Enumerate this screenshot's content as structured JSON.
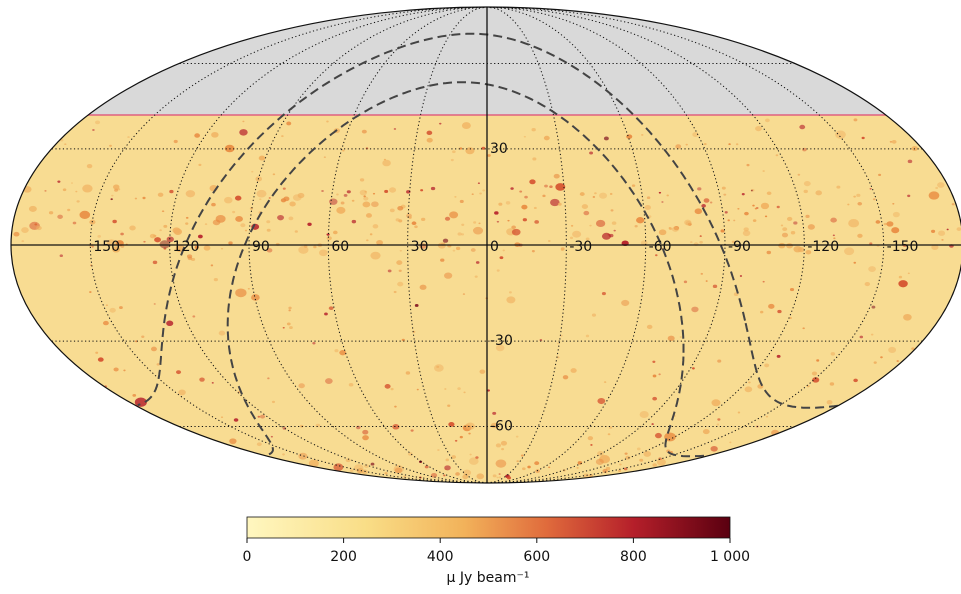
{
  "map": {
    "longitude_labels": [
      150,
      120,
      90,
      60,
      30,
      0,
      -30,
      -60,
      -90,
      -120,
      -150
    ],
    "latitude_labels": [
      30,
      -30,
      -60
    ],
    "colorbar": {
      "range": [
        0,
        1000
      ],
      "ticks": [
        0,
        200,
        400,
        600,
        800,
        {
          "value": 1000,
          "label": "1 000"
        }
      ],
      "label": "µ Jy beam⁻¹"
    }
  }
}
